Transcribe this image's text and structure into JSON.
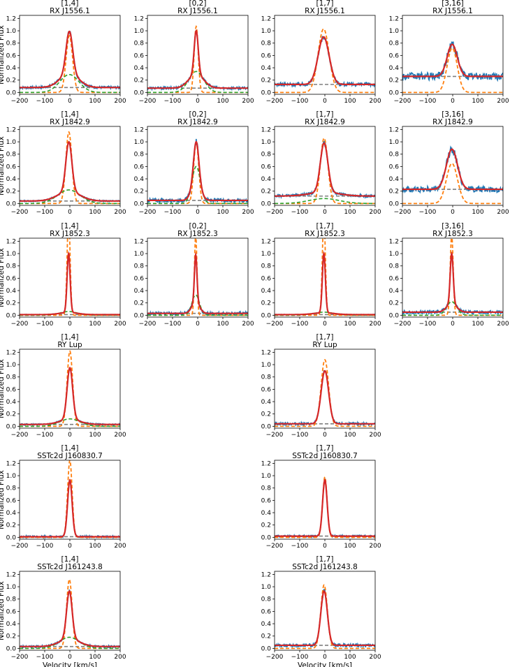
{
  "figure": {
    "ylabel": "Normalized Flux",
    "xlabel": "Velocity [km/s]",
    "xticks": [
      -200,
      -100,
      0,
      100,
      200
    ],
    "yticks": [
      0.0,
      0.2,
      0.4,
      0.6,
      0.8,
      1.0,
      1.2
    ],
    "xlim": [
      -200,
      200
    ],
    "ylim": [
      -0.03,
      1.25
    ],
    "colors": {
      "data": "#1f77b4",
      "total_fit": "#d62728",
      "narrow": "#ff7f0e",
      "broad": "#2ca02c",
      "continuum": "#7f7f7f"
    }
  },
  "chart_data": [
    {
      "type": "line",
      "band": "[1,4]",
      "source": "RX J1556.1",
      "title_line1": "[1,4]",
      "title_line2": "RX J1556.1",
      "xlabel": "",
      "ylabel": "Normalized Flux",
      "xlim": [
        -200,
        200
      ],
      "ylim": [
        -0.03,
        1.25
      ],
      "continuum": 0.08,
      "narrow": {
        "amp": 0.92,
        "center": -2,
        "sigma": 13
      },
      "broad": {
        "amp": 0.29,
        "center": -2,
        "sigma": 38
      },
      "peak": 0.99,
      "noise": 0.02,
      "show_narrow": true,
      "show_broad": true
    },
    {
      "type": "line",
      "band": "[0,2]",
      "source": "RX J1556.1",
      "title_line1": "[0,2]",
      "title_line2": "RX J1556.1",
      "xlabel": "",
      "ylabel": "",
      "xlim": [
        -200,
        200
      ],
      "ylim": [
        -0.03,
        1.25
      ],
      "continuum": 0.07,
      "narrow": {
        "amp": 1.07,
        "center": -6,
        "sigma": 8
      },
      "broad": {
        "amp": 0.34,
        "center": -6,
        "sigma": 30
      },
      "peak": 1.0,
      "noise": 0.02,
      "show_narrow": true,
      "show_broad": true
    },
    {
      "type": "line",
      "band": "[1,7]",
      "source": "RX J1556.1",
      "title_line1": "[1,7]",
      "title_line2": "RX J1556.1",
      "xlabel": "",
      "ylabel": "",
      "xlim": [
        -200,
        200
      ],
      "ylim": [
        -0.03,
        1.25
      ],
      "continuum": 0.13,
      "narrow": {
        "amp": 1.03,
        "center": -5,
        "sigma": 22
      },
      "broad": {
        "amp": 0.0,
        "center": 0,
        "sigma": 40
      },
      "peak": 0.9,
      "noise": 0.03,
      "show_narrow": true,
      "show_broad": false
    },
    {
      "type": "line",
      "band": "[3,16]",
      "source": "RX J1556.1",
      "title_line1": "[3,16]",
      "title_line2": "RX J1556.1",
      "xlabel": "",
      "ylabel": "",
      "xlim": [
        -200,
        200
      ],
      "ylim": [
        -0.03,
        1.25
      ],
      "continuum": 0.26,
      "narrow": {
        "amp": 0.72,
        "center": -2,
        "sigma": 20
      },
      "broad": {
        "amp": 0.0,
        "center": 0,
        "sigma": 40
      },
      "peak": 0.78,
      "noise": 0.06,
      "show_narrow": true,
      "show_broad": false
    },
    {
      "type": "line",
      "band": "[1,4]",
      "source": "RX J1842.9",
      "title_line1": "[1,4]",
      "title_line2": "RX J1842.9",
      "xlabel": "",
      "ylabel": "Normalized Flux",
      "xlim": [
        -200,
        200
      ],
      "ylim": [
        -0.03,
        1.25
      ],
      "continuum": 0.04,
      "narrow": {
        "amp": 1.16,
        "center": -4,
        "sigma": 12
      },
      "broad": {
        "amp": 0.22,
        "center": -4,
        "sigma": 45
      },
      "peak": 1.0,
      "noise": 0.01,
      "show_narrow": true,
      "show_broad": true
    },
    {
      "type": "line",
      "band": "[0,2]",
      "source": "RX J1842.9",
      "title_line1": "[0,2]",
      "title_line2": "RX J1842.9",
      "xlabel": "",
      "ylabel": "",
      "xlim": [
        -200,
        200
      ],
      "ylim": [
        -0.03,
        1.25
      ],
      "continuum": 0.05,
      "narrow": {
        "amp": 0.99,
        "center": -6,
        "sigma": 10
      },
      "broad": {
        "amp": 0.6,
        "center": -6,
        "sigma": 17
      },
      "peak": 1.0,
      "noise": 0.03,
      "show_narrow": true,
      "show_broad": true
    },
    {
      "type": "line",
      "band": "[1,7]",
      "source": "RX J1842.9",
      "title_line1": "[1,7]",
      "title_line2": "RX J1842.9",
      "xlabel": "",
      "ylabel": "",
      "xlim": [
        -200,
        200
      ],
      "ylim": [
        -0.03,
        1.25
      ],
      "continuum": 0.12,
      "narrow": {
        "amp": 1.06,
        "center": -3,
        "sigma": 15
      },
      "broad": {
        "amp": 0.08,
        "center": -3,
        "sigma": 60
      },
      "peak": 0.98,
      "noise": 0.02,
      "show_narrow": true,
      "show_broad": true
    },
    {
      "type": "line",
      "band": "[3,16]",
      "source": "RX J1842.9",
      "title_line1": "[3,16]",
      "title_line2": "RX J1842.9",
      "xlabel": "",
      "ylabel": "",
      "xlim": [
        -200,
        200
      ],
      "ylim": [
        -0.03,
        1.25
      ],
      "continuum": 0.23,
      "narrow": {
        "amp": 0.65,
        "center": -3,
        "sigma": 22
      },
      "broad": {
        "amp": 0.0,
        "center": 0,
        "sigma": 40
      },
      "peak": 0.88,
      "noise": 0.05,
      "show_narrow": true,
      "show_broad": false
    },
    {
      "type": "line",
      "band": "[1,4]",
      "source": "RX J1852.3",
      "title_line1": "[1,4]",
      "title_line2": "RX J1852.3",
      "xlabel": "",
      "ylabel": "Normalized Flux",
      "xlim": [
        -200,
        200
      ],
      "ylim": [
        -0.03,
        1.25
      ],
      "continuum": 0.01,
      "narrow": {
        "amp": 1.6,
        "center": -5,
        "sigma": 6
      },
      "broad": {
        "amp": 0.06,
        "center": -5,
        "sigma": 35
      },
      "peak": 1.0,
      "noise": 0.005,
      "show_narrow": true,
      "show_broad": true
    },
    {
      "type": "line",
      "band": "[0,2]",
      "source": "RX J1852.3",
      "title_line1": "[0,2]",
      "title_line2": "RX J1852.3",
      "xlabel": "",
      "ylabel": "",
      "xlim": [
        -200,
        200
      ],
      "ylim": [
        -0.03,
        1.25
      ],
      "continuum": 0.03,
      "narrow": {
        "amp": 1.3,
        "center": -8,
        "sigma": 5
      },
      "broad": {
        "amp": 0.33,
        "center": -8,
        "sigma": 15
      },
      "peak": 0.98,
      "noise": 0.025,
      "show_narrow": true,
      "show_broad": true
    },
    {
      "type": "line",
      "band": "[1,7]",
      "source": "RX J1852.3",
      "title_line1": "[1,7]",
      "title_line2": "RX J1852.3",
      "xlabel": "",
      "ylabel": "",
      "xlim": [
        -200,
        200
      ],
      "ylim": [
        -0.03,
        1.25
      ],
      "continuum": 0.01,
      "narrow": {
        "amp": 1.6,
        "center": -4,
        "sigma": 6
      },
      "broad": {
        "amp": 0.05,
        "center": -4,
        "sigma": 40
      },
      "peak": 1.0,
      "noise": 0.005,
      "show_narrow": true,
      "show_broad": true
    },
    {
      "type": "line",
      "band": "[3,16]",
      "source": "RX J1852.3",
      "title_line1": "[3,16]",
      "title_line2": "RX J1852.3",
      "xlabel": "",
      "ylabel": "",
      "xlim": [
        -200,
        200
      ],
      "ylim": [
        -0.03,
        1.25
      ],
      "continuum": 0.05,
      "narrow": {
        "amp": 1.3,
        "center": -4,
        "sigma": 6
      },
      "broad": {
        "amp": 0.22,
        "center": -4,
        "sigma": 20
      },
      "peak": 1.0,
      "noise": 0.025,
      "show_narrow": true,
      "show_broad": true
    },
    {
      "type": "line",
      "band": "[1,4]",
      "source": "RY Lup",
      "title_line1": "[1,4]",
      "title_line2": "RY Lup",
      "xlabel": "",
      "ylabel": "Normalized Flux",
      "xlim": [
        -200,
        200
      ],
      "ylim": [
        -0.03,
        1.25
      ],
      "continuum": 0.03,
      "narrow": {
        "amp": 1.22,
        "center": 0,
        "sigma": 11
      },
      "broad": {
        "amp": 0.12,
        "center": 0,
        "sigma": 40
      },
      "peak": 0.95,
      "noise": 0.012,
      "show_narrow": true,
      "show_broad": true
    },
    {
      "type": "line",
      "band": "[1,7]",
      "source": "RY Lup",
      "title_line1": "[1,7]",
      "title_line2": "RY Lup",
      "xlabel": "",
      "ylabel": "",
      "xlim": [
        -200,
        200
      ],
      "ylim": [
        -0.03,
        1.25
      ],
      "continuum": 0.04,
      "narrow": {
        "amp": 1.08,
        "center": 0,
        "sigma": 15
      },
      "broad": {
        "amp": 0.0,
        "center": 0,
        "sigma": 40
      },
      "peak": 0.9,
      "noise": 0.02,
      "show_narrow": true,
      "show_broad": false
    },
    {
      "type": "line",
      "band": "[1,4]",
      "source": "SSTc2d J160830.7",
      "title_line1": "[1,4]",
      "title_line2": "SSTc2d J160830.7",
      "xlabel": "",
      "ylabel": "Normalized Flux",
      "xlim": [
        -200,
        200
      ],
      "ylim": [
        -0.03,
        1.25
      ],
      "continuum": 0.01,
      "narrow": {
        "amp": 1.25,
        "center": 0,
        "sigma": 9
      },
      "broad": {
        "amp": 0.0,
        "center": 0,
        "sigma": 40
      },
      "peak": 0.93,
      "noise": 0.015,
      "show_narrow": true,
      "show_broad": false
    },
    {
      "type": "line",
      "band": "[1,7]",
      "source": "SSTc2d J160830.7",
      "title_line1": "[1,7]",
      "title_line2": "SSTc2d J160830.7",
      "xlabel": "",
      "ylabel": "",
      "xlim": [
        -200,
        200
      ],
      "ylim": [
        -0.03,
        1.25
      ],
      "continuum": 0.02,
      "narrow": {
        "amp": 0.98,
        "center": 0,
        "sigma": 9
      },
      "broad": {
        "amp": 0.0,
        "center": 0,
        "sigma": 40
      },
      "peak": 0.93,
      "noise": 0.015,
      "show_narrow": true,
      "show_broad": false
    },
    {
      "type": "line",
      "band": "[1,4]",
      "source": "SSTc2d J161243.8",
      "title_line1": "[1,4]",
      "title_line2": "SSTc2d J161243.8",
      "xlabel": "Velocity [km/s]",
      "ylabel": "Normalized Flux",
      "xlim": [
        -200,
        200
      ],
      "ylim": [
        -0.03,
        1.25
      ],
      "continuum": 0.03,
      "narrow": {
        "amp": 1.12,
        "center": -2,
        "sigma": 11
      },
      "broad": {
        "amp": 0.18,
        "center": -2,
        "sigma": 40
      },
      "peak": 0.93,
      "noise": 0.015,
      "show_narrow": true,
      "show_broad": true
    },
    {
      "type": "line",
      "band": "[1,7]",
      "source": "SSTc2d J161243.8",
      "title_line1": "[1,7]",
      "title_line2": "SSTc2d J161243.8",
      "xlabel": "Velocity [km/s]",
      "ylabel": "",
      "xlim": [
        -200,
        200
      ],
      "ylim": [
        -0.03,
        1.25
      ],
      "continuum": 0.05,
      "narrow": {
        "amp": 1.03,
        "center": -3,
        "sigma": 13
      },
      "broad": {
        "amp": 0.0,
        "center": 0,
        "sigma": 40
      },
      "peak": 0.93,
      "noise": 0.025,
      "show_narrow": true,
      "show_broad": false
    }
  ]
}
